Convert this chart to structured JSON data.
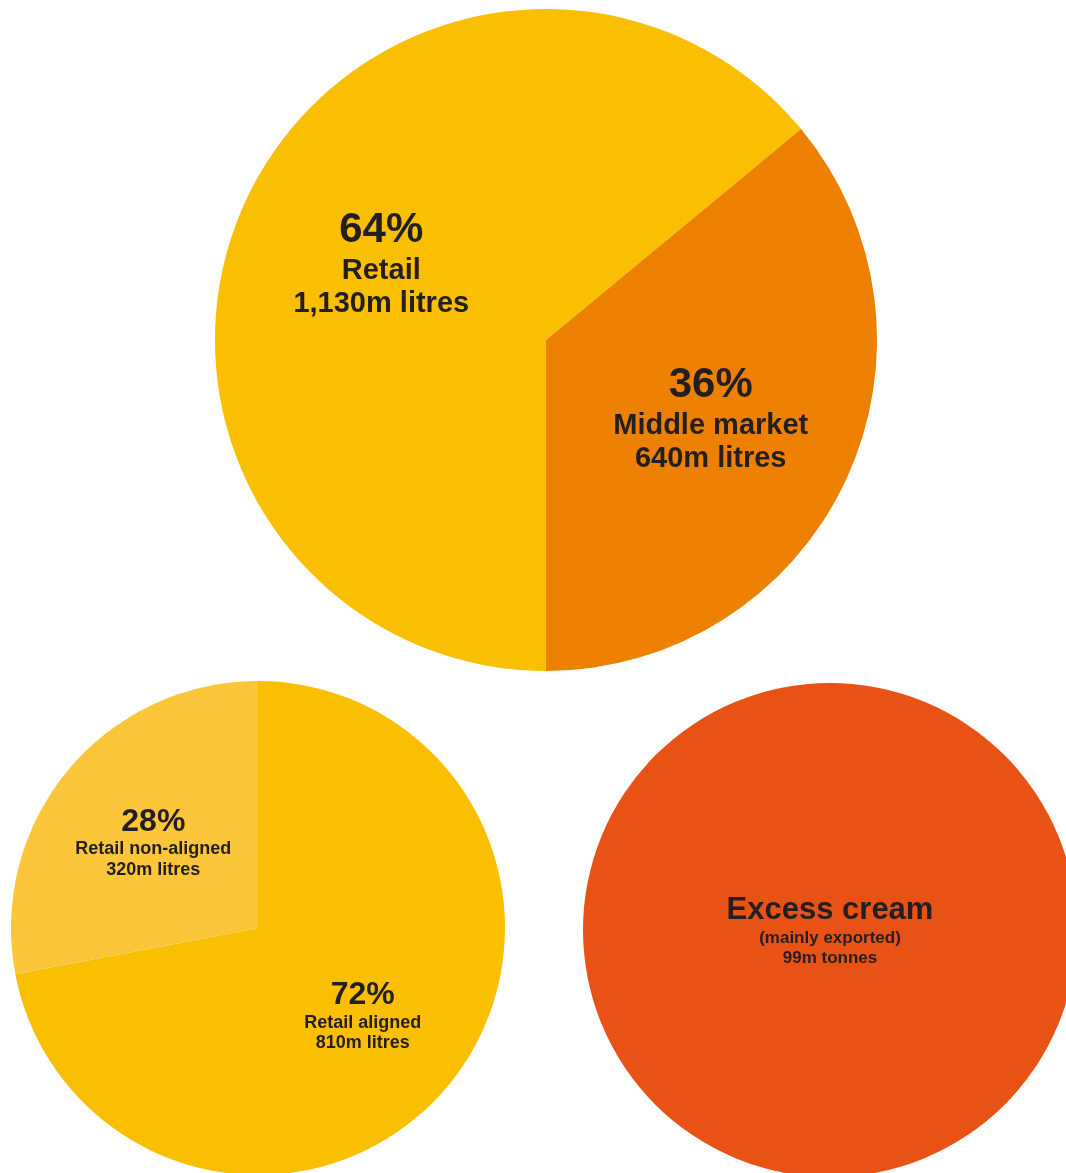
{
  "chart_data": [
    {
      "type": "pie",
      "categories": [
        "Retail",
        "Middle market"
      ],
      "values": [
        64,
        36
      ],
      "colors": [
        "#f9bf00",
        "#ee8000"
      ],
      "value_labels": [
        "64%",
        "36%"
      ],
      "annotations": [
        {
          "text": "1,130m litres",
          "x": "Retail"
        },
        {
          "text": "640m litres",
          "x": "Middle market"
        }
      ]
    },
    {
      "type": "pie",
      "categories": [
        "Retail aligned",
        "Retail non-aligned"
      ],
      "values": [
        72,
        28
      ],
      "colors": [
        "#f9bf00",
        "#fcc63a"
      ],
      "value_labels": [
        "72%",
        "28%"
      ],
      "annotations": [
        {
          "text": "810m litres",
          "x": "Retail aligned"
        },
        {
          "text": "320m litres",
          "x": "Retail non-aligned"
        }
      ]
    },
    {
      "type": "pie",
      "categories": [
        "Excess cream"
      ],
      "values": [
        100
      ],
      "colors": [
        "#e85215"
      ],
      "annotations": [
        {
          "text": "(mainly exported)",
          "x": "Excess cream"
        },
        {
          "text": "99m tonnes",
          "x": "Excess cream"
        }
      ]
    }
  ]
}
